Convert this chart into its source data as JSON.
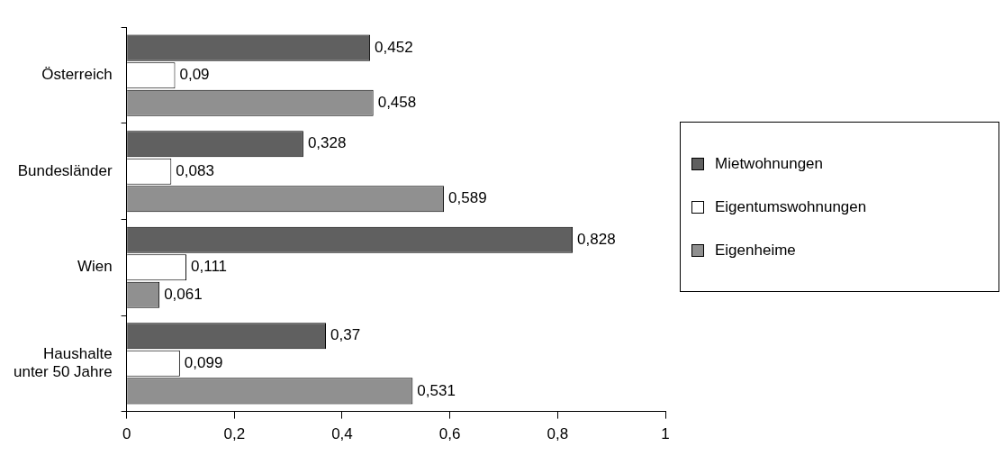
{
  "chart_data": {
    "type": "bar",
    "orientation": "horizontal",
    "categories": [
      "Österreich",
      "Bundesländer",
      "Wien",
      "Haushalte unter 50 Jahre"
    ],
    "series": [
      {
        "name": "Mietwohnungen",
        "color": "#606060",
        "values": [
          0.452,
          0.328,
          0.828,
          0.37
        ],
        "value_labels": [
          "0,452",
          "0,328",
          "0,828",
          "0,37"
        ]
      },
      {
        "name": "Eigentumswohnungen",
        "color": "#ffffff",
        "values": [
          0.09,
          0.083,
          0.111,
          0.099
        ],
        "value_labels": [
          "0,09",
          "0,083",
          "0,111",
          "0,099"
        ]
      },
      {
        "name": "Eigenheime",
        "color": "#909090",
        "values": [
          0.458,
          0.589,
          0.061,
          0.531
        ],
        "value_labels": [
          "0,458",
          "0,589",
          "0,061",
          "0,531"
        ]
      }
    ],
    "xlim": [
      0,
      1
    ],
    "xticks": [
      0,
      {
        "value": 0.2,
        "label": "0,2"
      },
      {
        "value": 0.4,
        "label": "0,4"
      },
      {
        "value": 0.6,
        "label": "0,6"
      },
      {
        "value": 0.8,
        "label": "0,8"
      },
      1
    ],
    "grid": false,
    "legend": "right"
  }
}
